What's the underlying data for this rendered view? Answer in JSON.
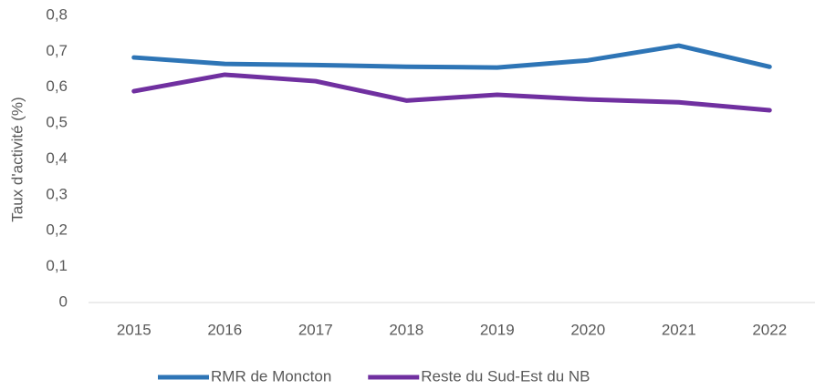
{
  "chart_data": {
    "type": "line",
    "y_label": "Taux d'activité (%)",
    "categories": [
      "2015",
      "2016",
      "2017",
      "2018",
      "2019",
      "2020",
      "2021",
      "2022"
    ],
    "series": [
      {
        "name": "RMR de Moncton",
        "color": "#2e75b6",
        "values": [
          0.683,
          0.665,
          0.662,
          0.657,
          0.655,
          0.675,
          0.716,
          0.657
        ]
      },
      {
        "name": "Reste du Sud-Est du NB",
        "color": "#7030a0",
        "values": [
          0.589,
          0.635,
          0.617,
          0.563,
          0.579,
          0.566,
          0.558,
          0.536
        ]
      }
    ],
    "ylim": [
      0,
      0.8
    ],
    "yticks": [
      0,
      {
        "value": 0.1,
        "label": "0,1"
      },
      {
        "value": 0.2,
        "label": "0,2"
      },
      {
        "value": 0.3,
        "label": "0,3"
      },
      {
        "value": 0.4,
        "label": "0,4"
      },
      {
        "value": 0.5,
        "label": "0,5"
      },
      {
        "value": 0.6,
        "label": "0,6"
      },
      {
        "value": 0.7,
        "label": "0,7"
      },
      {
        "value": 0.8,
        "label": "0,8"
      }
    ],
    "grid": false,
    "legend": "bottom"
  }
}
